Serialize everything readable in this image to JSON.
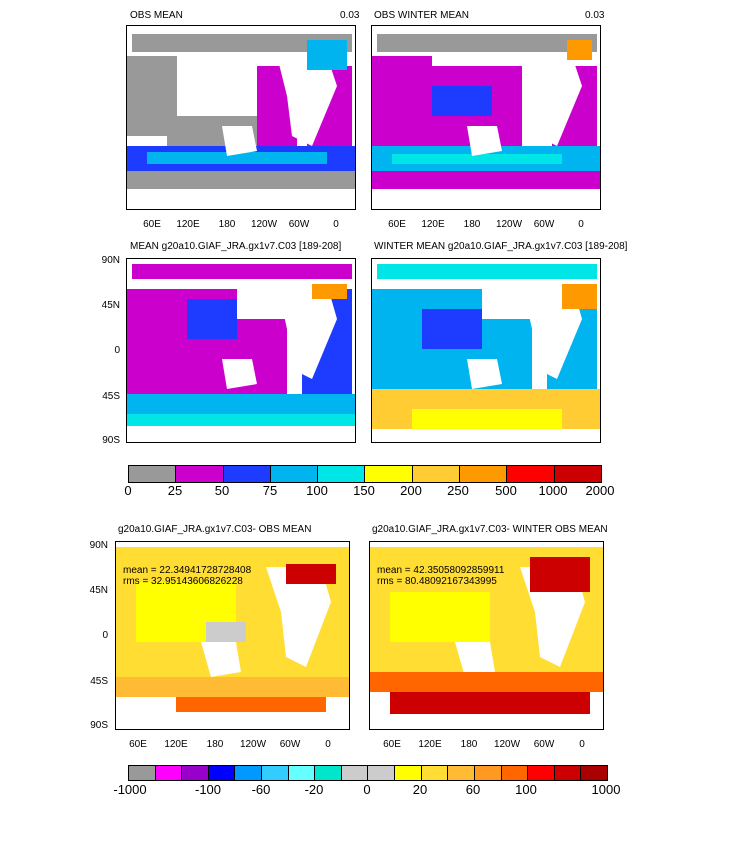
{
  "panels": [
    {
      "title": "OBS MEAN",
      "value": "0.03"
    },
    {
      "title": "OBS WINTER MEAN",
      "value": "0.03"
    },
    {
      "title": "MEAN g20a10.GIAF_JRA.gx1v7.C03 [189-208]"
    },
    {
      "title": "WINTER MEAN g20a10.GIAF_JRA.gx1v7.C03 [189-208]"
    },
    {
      "title": "g20a10.GIAF_JRA.gx1v7.C03- OBS MEAN",
      "mean": "mean = 22.34941728728408",
      "rms": "rms = 32.95143606826228"
    },
    {
      "title": "g20a10.GIAF_JRA.gx1v7.C03- WINTER OBS MEAN",
      "mean": "mean = 42.35058092859911",
      "rms": "rms = 80.48092167343995"
    }
  ],
  "lon_labels": [
    "60E",
    "120E",
    "180",
    "120W",
    "60W",
    "0"
  ],
  "lat_labels": [
    "90N",
    "45N",
    "0",
    "45S",
    "90S"
  ],
  "colorbar1": {
    "labels": [
      "0",
      "25",
      "50",
      "75",
      "100",
      "150",
      "200",
      "250",
      "500",
      "1000",
      "2000"
    ],
    "colors": [
      "#999999",
      "#cc00cc",
      "#1e3cff",
      "#00b4f0",
      "#00e6e6",
      "#ffff00",
      "#ffcc33",
      "#ff9900",
      "#ff0000",
      "#cc0000"
    ]
  },
  "colorbar2": {
    "labels": [
      "-1000",
      "-100",
      "-60",
      "-20",
      "0",
      "20",
      "60",
      "100",
      "1000"
    ],
    "colors": [
      "#999999",
      "#ff00ff",
      "#9900cc",
      "#0000ff",
      "#0099ff",
      "#33ccff",
      "#66ffff",
      "#00e6cc",
      "#cccccc",
      "#cccccc",
      "#ffff00",
      "#ffdd33",
      "#ffbb33",
      "#ff9922",
      "#ff6600",
      "#ff0000",
      "#cc0000",
      "#aa0000"
    ]
  }
}
